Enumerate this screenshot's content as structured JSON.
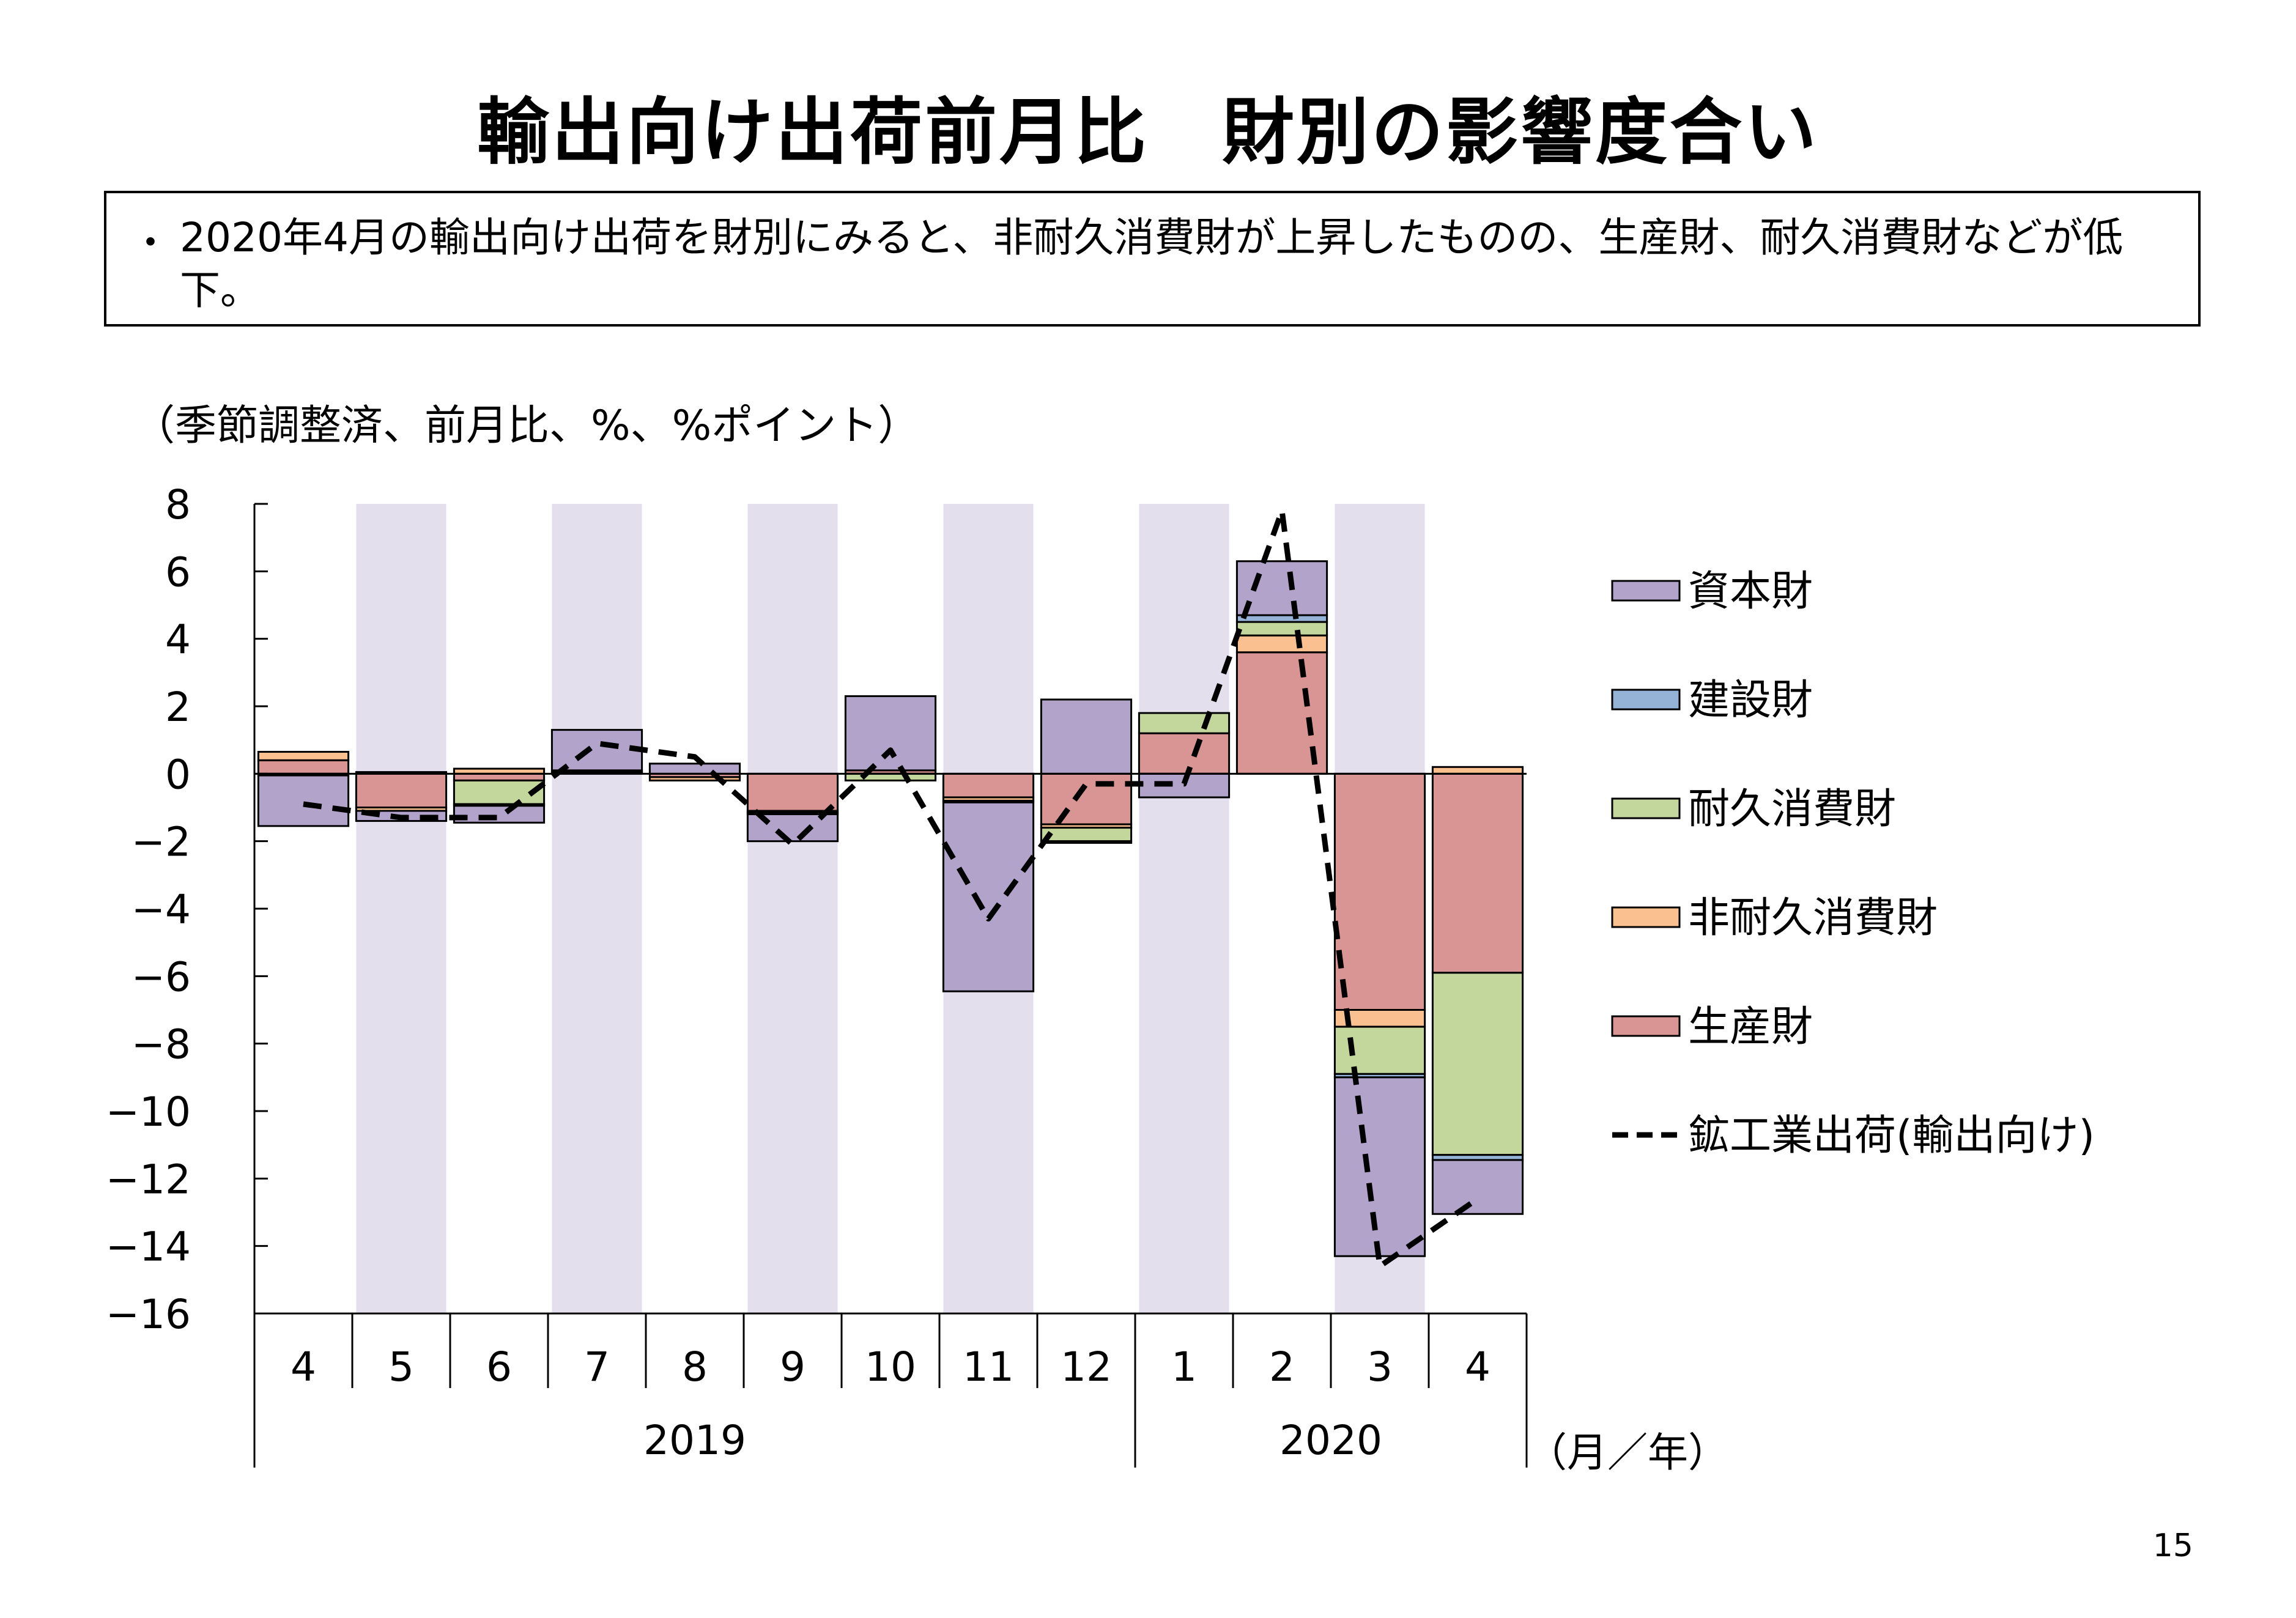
{
  "title_part1": "輸出向け出荷前月比",
  "title_part2": "財別の影響度合い",
  "summary": {
    "bullet": "・",
    "text": "2020年4月の輸出向け出荷を財別にみると、非耐久消費財が上昇したものの、生産財、耐久消費財などが低下。"
  },
  "unit_label": "（季節調整済、前月比、%、%ポイント）",
  "page_number": "15",
  "colors": {
    "capital": "#b1a3c9",
    "construction": "#95b3d7",
    "durable": "#c3d69b",
    "nondurable": "#fac090",
    "production": "#d99594",
    "shade": "#e4dfec",
    "line": "#000000"
  },
  "chart_data": {
    "type": "bar",
    "stacked": true,
    "categories": [
      "4",
      "5",
      "6",
      "7",
      "8",
      "9",
      "10",
      "11",
      "12",
      "1",
      "2",
      "3",
      "4"
    ],
    "year_groups": [
      {
        "label": "2019",
        "from": 0,
        "to": 8
      },
      {
        "label": "2020",
        "from": 9,
        "to": 12
      }
    ],
    "x_unit_label": "（月／年）",
    "ylim": [
      -16,
      8
    ],
    "yticks": [
      8,
      6,
      4,
      2,
      0,
      -2,
      -4,
      -6,
      -8,
      -10,
      -12,
      -14,
      -16
    ],
    "yticks_labels": [
      "8",
      "6",
      "4",
      "2",
      "0",
      "−2",
      "−4",
      "−6",
      "−8",
      "−10",
      "−12",
      "−14",
      "−16"
    ],
    "shaded_categories": [
      1,
      3,
      5,
      7,
      9,
      11
    ],
    "series": [
      {
        "name": "生産財",
        "key": "production",
        "values": [
          0.4,
          -1.0,
          -0.2,
          0.05,
          -0.1,
          -1.1,
          0.1,
          -0.7,
          -1.5,
          1.2,
          3.6,
          -7.0,
          -5.9
        ]
      },
      {
        "name": "非耐久消費財",
        "key": "nondurable",
        "values": [
          0.25,
          -0.1,
          0.15,
          0.0,
          -0.1,
          -0.05,
          0.0,
          -0.1,
          -0.1,
          0.0,
          0.5,
          -0.5,
          0.2
        ]
      },
      {
        "name": "耐久消費財",
        "key": "durable",
        "values": [
          -0.05,
          0.05,
          -0.7,
          0.05,
          0.0,
          0.0,
          -0.2,
          0.0,
          -0.4,
          0.6,
          0.4,
          -1.4,
          -5.4
        ]
      },
      {
        "name": "建設財",
        "key": "construction",
        "values": [
          0.0,
          0.0,
          -0.05,
          0.0,
          0.0,
          -0.05,
          0.0,
          -0.05,
          -0.05,
          0.0,
          0.2,
          -0.1,
          -0.15
        ]
      },
      {
        "name": "資本財",
        "key": "capital",
        "values": [
          -1.5,
          -0.3,
          -0.5,
          1.2,
          0.3,
          -0.8,
          2.2,
          -5.6,
          2.2,
          -0.7,
          1.6,
          -5.3,
          -1.6
        ]
      }
    ],
    "line_series": {
      "name": "鉱工業出荷(輸出向け)",
      "key": "line",
      "values": [
        -0.9,
        -1.3,
        -1.3,
        0.9,
        0.5,
        -2.1,
        0.7,
        -4.3,
        -0.3,
        -0.3,
        7.8,
        -14.6,
        -12.6
      ]
    },
    "legend_order": [
      "資本財",
      "建設財",
      "耐久消費財",
      "非耐久消費財",
      "生産財",
      "鉱工業出荷(輸出向け)"
    ],
    "legend_keys": [
      "capital",
      "construction",
      "durable",
      "nondurable",
      "production",
      "line"
    ],
    "legend_position": "right",
    "grid": false
  }
}
